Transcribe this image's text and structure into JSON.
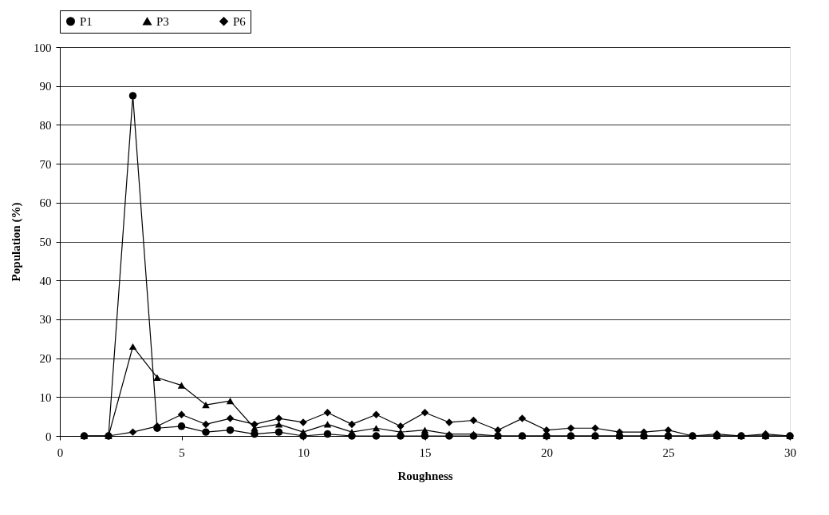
{
  "chart_data": {
    "type": "line",
    "xlabel": "Roughness",
    "ylabel": "Population (%)",
    "x": [
      1,
      2,
      3,
      4,
      5,
      6,
      7,
      8,
      9,
      10,
      11,
      12,
      13,
      14,
      15,
      16,
      17,
      18,
      19,
      20,
      21,
      22,
      23,
      24,
      25,
      26,
      27,
      28,
      29,
      30
    ],
    "series": [
      {
        "name": "P1",
        "color": "#000000",
        "marker": "circle",
        "values": [
          0,
          0,
          87.5,
          2,
          2.5,
          1,
          1.5,
          0.5,
          1,
          0,
          0.5,
          0,
          0,
          0,
          0,
          0,
          0,
          0,
          0,
          0,
          0,
          0,
          0,
          0,
          0,
          0,
          0,
          0,
          0,
          0
        ]
      },
      {
        "name": "P3",
        "color": "#000000",
        "marker": "triangle",
        "values": [
          0,
          0,
          23,
          15,
          13,
          8,
          9,
          2,
          3,
          1,
          3,
          1,
          2,
          1,
          1.5,
          0.5,
          0.5,
          0,
          0,
          0,
          0,
          0,
          0,
          0,
          0,
          0,
          0,
          0,
          0,
          0
        ]
      },
      {
        "name": "P6",
        "color": "#000000",
        "marker": "diamond",
        "values": [
          0,
          0,
          1,
          2.5,
          5.5,
          3,
          4.5,
          3,
          4.5,
          3.5,
          6,
          3,
          5.5,
          2.5,
          6,
          3.5,
          4,
          1.5,
          4.5,
          1.5,
          2,
          2,
          1,
          1,
          1.5,
          0,
          0.5,
          0,
          0.5,
          0
        ]
      }
    ],
    "xlim": [
      0,
      30
    ],
    "xticks": [
      0,
      5,
      10,
      15,
      20,
      25,
      30
    ],
    "ylim": [
      0,
      100
    ],
    "yticks": [
      0,
      10,
      20,
      30,
      40,
      50,
      60,
      70,
      80,
      90,
      100
    ],
    "grid": "y",
    "legend": "top",
    "line_style": "solid"
  }
}
